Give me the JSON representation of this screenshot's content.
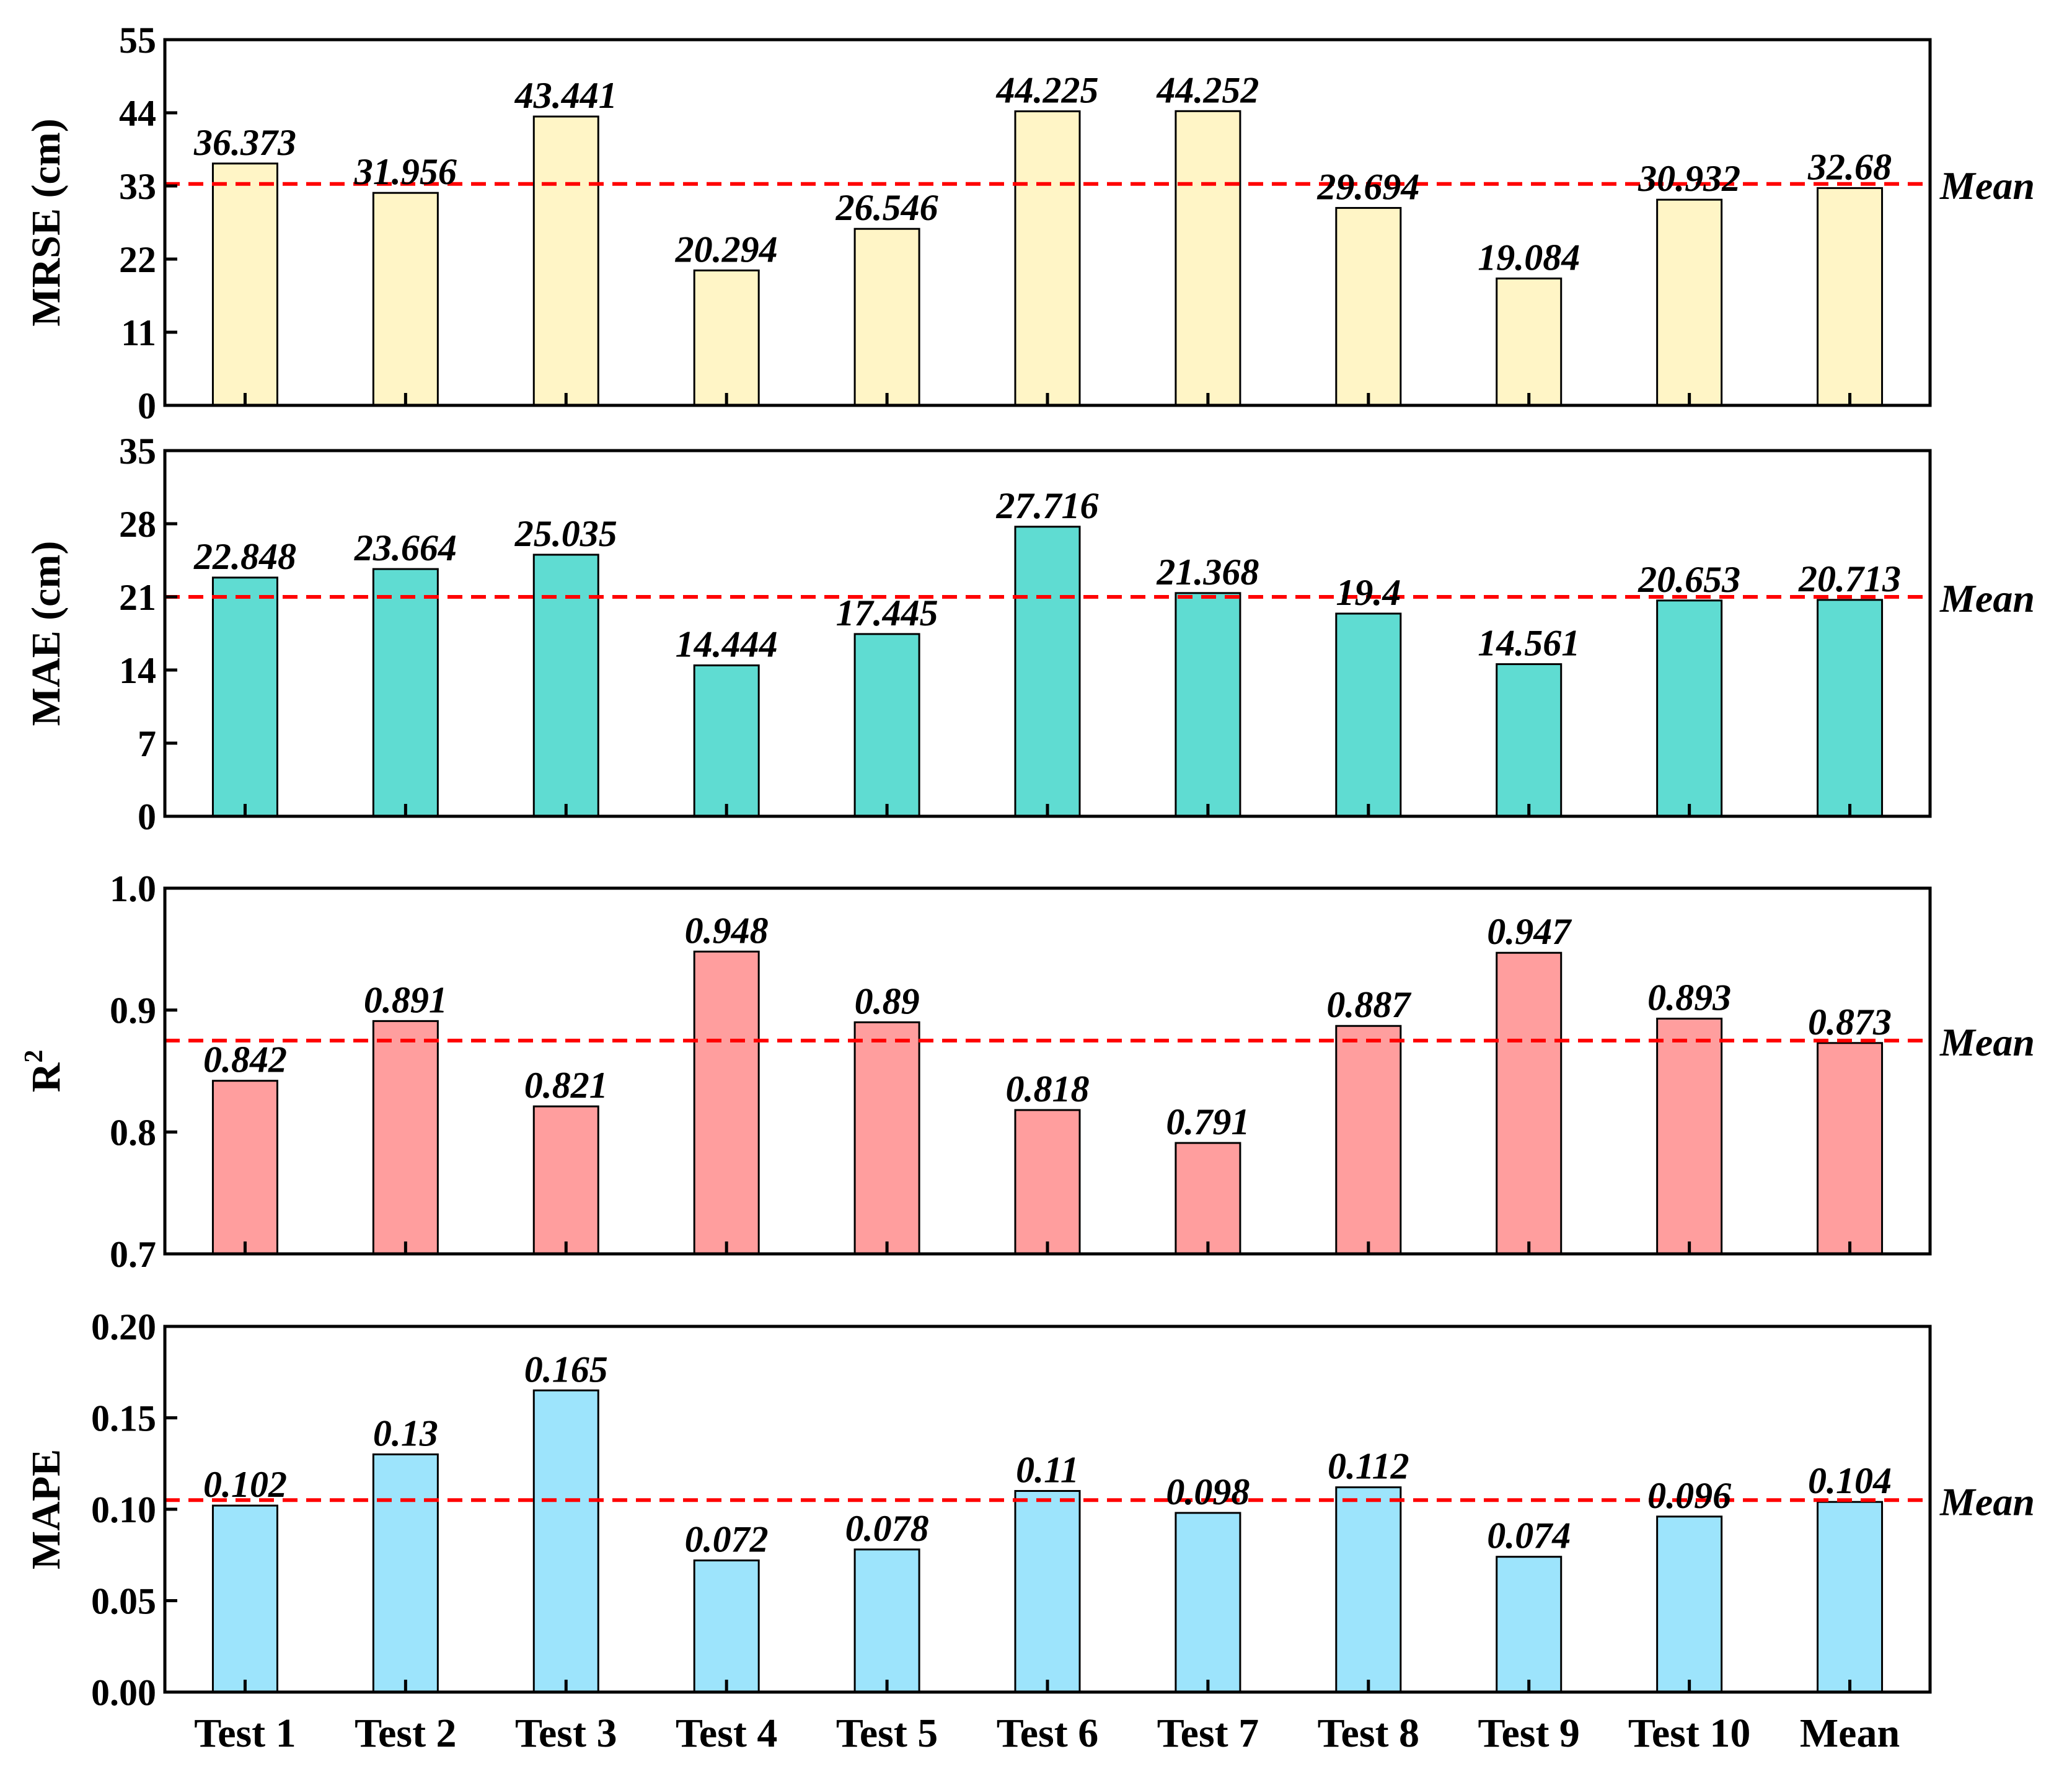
{
  "chart_data": {
    "type": "bar",
    "categories": [
      "Test 1",
      "Test 2",
      "Test 3",
      "Test 4",
      "Test 5",
      "Test 6",
      "Test 7",
      "Test 8",
      "Test 9",
      "Test 10",
      "Mean"
    ],
    "mean_line_label": "Mean",
    "colors": {
      "mean_line": "#ff0000",
      "bar_stroke": "#000000"
    },
    "panels": [
      {
        "id": "mrse",
        "ylabel": "MRSE (cm)",
        "ylim": [
          0,
          55
        ],
        "yticks": [
          "0",
          "11",
          "22",
          "33",
          "44",
          "55"
        ],
        "values": [
          36.373,
          31.956,
          43.441,
          20.294,
          26.546,
          44.225,
          44.252,
          29.694,
          19.084,
          30.932,
          32.68
        ],
        "value_labels": [
          "36.373",
          "31.956",
          "43.441",
          "20.294",
          "26.546",
          "44.225",
          "44.252",
          "29.694",
          "19.084",
          "30.932",
          "32.68"
        ],
        "mean_line": 33.3,
        "color": "#fff5c6"
      },
      {
        "id": "mae",
        "ylabel": "MAE (cm)",
        "ylim": [
          0,
          35
        ],
        "yticks": [
          "0",
          "7",
          "14",
          "21",
          "28",
          "35"
        ],
        "values": [
          22.848,
          23.664,
          25.035,
          14.444,
          17.445,
          27.716,
          21.368,
          19.4,
          14.561,
          20.653,
          20.713
        ],
        "value_labels": [
          "22.848",
          "23.664",
          "25.035",
          "14.444",
          "17.445",
          "27.716",
          "21.368",
          "19.4",
          "14.561",
          "20.653",
          "20.713"
        ],
        "mean_line": 21.0,
        "color": "#5fdcd2"
      },
      {
        "id": "r2",
        "ylabel": "R",
        "ylabel_sup": "2",
        "ylim": [
          0.7,
          1.0
        ],
        "yticks": [
          "0.7",
          "0.8",
          "0.9",
          "1.0"
        ],
        "values": [
          0.842,
          0.891,
          0.821,
          0.948,
          0.89,
          0.818,
          0.791,
          0.887,
          0.947,
          0.893,
          0.873
        ],
        "value_labels": [
          "0.842",
          "0.891",
          "0.821",
          "0.948",
          "0.89",
          "0.818",
          "0.791",
          "0.887",
          "0.947",
          "0.893",
          "0.873"
        ],
        "mean_line": 0.875,
        "color": "#ff9e9e"
      },
      {
        "id": "mape",
        "ylabel": "MAPE",
        "ylim": [
          0,
          0.2
        ],
        "yticks": [
          "0.00",
          "0.05",
          "0.10",
          "0.15",
          "0.20"
        ],
        "values": [
          0.102,
          0.13,
          0.165,
          0.072,
          0.078,
          0.11,
          0.098,
          0.112,
          0.074,
          0.096,
          0.104
        ],
        "value_labels": [
          "0.102",
          "0.13",
          "0.165",
          "0.072",
          "0.078",
          "0.11",
          "0.098",
          "0.112",
          "0.074",
          "0.096",
          "0.104"
        ],
        "mean_line": 0.105,
        "color": "#9de4fc"
      }
    ]
  }
}
